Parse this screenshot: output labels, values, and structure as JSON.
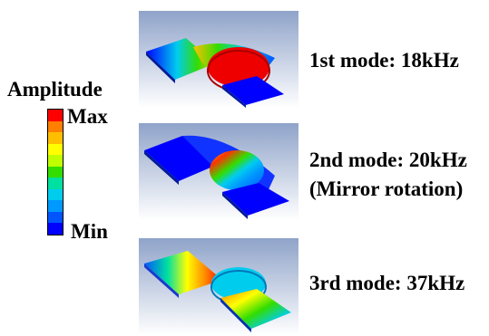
{
  "legend": {
    "title": "Amplitude",
    "max_label": "Max",
    "min_label": "Min",
    "colors": [
      "#ff0000",
      "#ff7f00",
      "#ffbf00",
      "#ffff00",
      "#bfff00",
      "#33dd00",
      "#00e0a0",
      "#00ccee",
      "#0099ff",
      "#0055ff",
      "#0000ff"
    ]
  },
  "modes": [
    {
      "caption": "1st mode: 18kHz",
      "caption_line2": ""
    },
    {
      "caption": "2nd mode: 20kHz",
      "caption_line2": "(Mirror rotation)"
    },
    {
      "caption": "3rd mode: 37kHz",
      "caption_line2": ""
    }
  ]
}
